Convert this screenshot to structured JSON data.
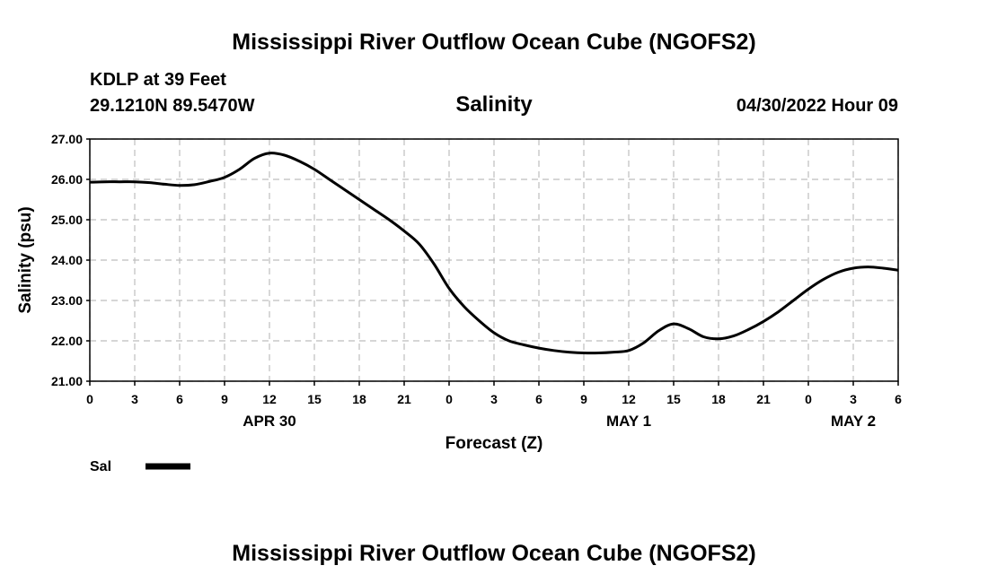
{
  "header": {
    "title_top": "Mississippi River Outflow Ocean Cube (NGOFS2)",
    "station": "KDLP at 39 Feet",
    "coords": "29.1210N  89.5470W",
    "datetime": "04/30/2022 Hour 09",
    "title_bottom": "Mississippi River Outflow Ocean Cube (NGOFS2)"
  },
  "chart_data": {
    "type": "line",
    "title": "Salinity",
    "xlabel": "Forecast (Z)",
    "ylabel": "Salinity (psu)",
    "xlim": [
      0,
      54
    ],
    "ylim": [
      21.0,
      27.0
    ],
    "y_ticks": [
      "21.00",
      "22.00",
      "23.00",
      "24.00",
      "25.00",
      "26.00",
      "27.00"
    ],
    "x_ticks": [
      "0",
      "3",
      "6",
      "9",
      "12",
      "15",
      "18",
      "21",
      "0",
      "3",
      "6",
      "9",
      "12",
      "15",
      "18",
      "21",
      "0",
      "3",
      "6"
    ],
    "day_labels": [
      {
        "label": "APR 30",
        "x": 12
      },
      {
        "label": "MAY 1",
        "x": 36
      },
      {
        "label": "MAY 2",
        "x": 51
      }
    ],
    "grid": true,
    "legend_position": "bottom-left",
    "series": [
      {
        "name": "Sal",
        "color": "#000000",
        "x": [
          0,
          1,
          2,
          3,
          4,
          5,
          6,
          7,
          8,
          9,
          10,
          11,
          12,
          13,
          14,
          15,
          16,
          17,
          18,
          19,
          20,
          21,
          22,
          23,
          24,
          25,
          26,
          27,
          28,
          29,
          30,
          31,
          32,
          33,
          34,
          35,
          36,
          37,
          38,
          39,
          40,
          41,
          42,
          43,
          44,
          45,
          46,
          47,
          48,
          49,
          50,
          51,
          52,
          53,
          54
        ],
        "values": [
          25.93,
          25.94,
          25.94,
          25.94,
          25.92,
          25.88,
          25.85,
          25.87,
          25.95,
          26.05,
          26.25,
          26.52,
          26.65,
          26.6,
          26.45,
          26.25,
          26.0,
          25.75,
          25.5,
          25.25,
          25.0,
          24.72,
          24.4,
          23.9,
          23.3,
          22.85,
          22.5,
          22.2,
          22.0,
          21.9,
          21.82,
          21.76,
          21.72,
          21.7,
          21.7,
          21.72,
          21.76,
          21.95,
          22.25,
          22.42,
          22.3,
          22.1,
          22.05,
          22.12,
          22.28,
          22.48,
          22.72,
          23.0,
          23.28,
          23.52,
          23.7,
          23.8,
          23.83,
          23.8,
          23.75
        ]
      }
    ]
  }
}
